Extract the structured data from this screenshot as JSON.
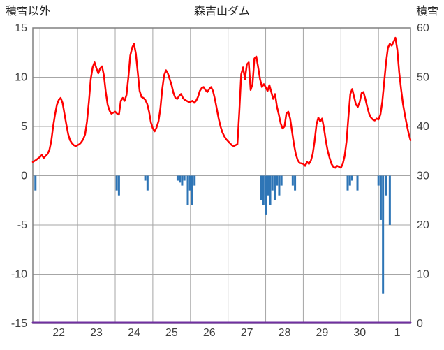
{
  "header": {
    "left_label": "積雪以外",
    "title": "森吉山ダム",
    "right_label": "積雪"
  },
  "chart_data": {
    "type": "line",
    "title": "森吉山ダム",
    "left_axis": {
      "label": "積雪以外",
      "min": -15,
      "max": 15,
      "ticks": [
        15,
        10,
        5,
        0,
        -5,
        -10,
        -15
      ]
    },
    "right_axis": {
      "label": "積雪",
      "min": 0,
      "max": 60,
      "ticks": [
        60,
        50,
        40,
        30,
        20,
        10,
        0
      ]
    },
    "x_axis": {
      "min": 21.81,
      "max": 31.85,
      "gridlines": [
        22,
        23,
        24,
        25,
        26,
        27,
        28,
        29,
        30,
        31
      ],
      "tick_labels": [
        {
          "label": "22",
          "pos": 22.5
        },
        {
          "label": "23",
          "pos": 23.5
        },
        {
          "label": "24",
          "pos": 24.5
        },
        {
          "label": "25",
          "pos": 25.5
        },
        {
          "label": "26",
          "pos": 26.5
        },
        {
          "label": "27",
          "pos": 27.5
        },
        {
          "label": "28",
          "pos": 28.5
        },
        {
          "label": "29",
          "pos": 29.5
        },
        {
          "label": "30",
          "pos": 30.5
        },
        {
          "label": "1",
          "pos": 31.5
        }
      ]
    },
    "colors": {
      "red_line": "#ff0000",
      "blue_bars": "#2e75b6",
      "purple_line": "#7030a0",
      "gridline": "#a6a6a6",
      "border": "#808080",
      "tick_text": "#404040"
    },
    "series": [
      {
        "name": "red-line",
        "type": "line",
        "axis": "left",
        "color": "#ff0000",
        "points": [
          [
            21.81,
            1.4
          ],
          [
            21.9,
            1.6
          ],
          [
            22.0,
            1.9
          ],
          [
            22.05,
            2.1
          ],
          [
            22.1,
            1.8
          ],
          [
            22.15,
            2.0
          ],
          [
            22.2,
            2.2
          ],
          [
            22.25,
            2.6
          ],
          [
            22.3,
            3.5
          ],
          [
            22.35,
            5.0
          ],
          [
            22.4,
            6.2
          ],
          [
            22.45,
            7.2
          ],
          [
            22.5,
            7.7
          ],
          [
            22.55,
            7.9
          ],
          [
            22.6,
            7.4
          ],
          [
            22.65,
            6.3
          ],
          [
            22.7,
            5.2
          ],
          [
            22.75,
            4.2
          ],
          [
            22.8,
            3.6
          ],
          [
            22.85,
            3.3
          ],
          [
            22.9,
            3.1
          ],
          [
            22.95,
            3.0
          ],
          [
            23.0,
            3.1
          ],
          [
            23.05,
            3.2
          ],
          [
            23.1,
            3.4
          ],
          [
            23.15,
            3.7
          ],
          [
            23.2,
            4.2
          ],
          [
            23.25,
            5.5
          ],
          [
            23.3,
            7.5
          ],
          [
            23.35,
            9.8
          ],
          [
            23.4,
            11.0
          ],
          [
            23.45,
            11.5
          ],
          [
            23.5,
            10.9
          ],
          [
            23.55,
            10.4
          ],
          [
            23.6,
            10.9
          ],
          [
            23.65,
            11.1
          ],
          [
            23.7,
            10.2
          ],
          [
            23.75,
            8.5
          ],
          [
            23.8,
            7.2
          ],
          [
            23.85,
            6.6
          ],
          [
            23.9,
            6.3
          ],
          [
            23.95,
            6.4
          ],
          [
            24.0,
            6.5
          ],
          [
            24.05,
            6.3
          ],
          [
            24.1,
            6.2
          ],
          [
            24.15,
            7.6
          ],
          [
            24.2,
            7.9
          ],
          [
            24.25,
            7.6
          ],
          [
            24.3,
            8.2
          ],
          [
            24.35,
            10.0
          ],
          [
            24.4,
            12.2
          ],
          [
            24.45,
            13.0
          ],
          [
            24.5,
            13.4
          ],
          [
            24.55,
            12.4
          ],
          [
            24.6,
            10.5
          ],
          [
            24.65,
            8.6
          ],
          [
            24.7,
            8.0
          ],
          [
            24.75,
            7.9
          ],
          [
            24.8,
            7.7
          ],
          [
            24.85,
            7.3
          ],
          [
            24.9,
            6.5
          ],
          [
            24.95,
            5.4
          ],
          [
            25.0,
            4.8
          ],
          [
            25.05,
            4.5
          ],
          [
            25.1,
            4.9
          ],
          [
            25.15,
            5.5
          ],
          [
            25.2,
            6.8
          ],
          [
            25.25,
            8.8
          ],
          [
            25.3,
            10.2
          ],
          [
            25.35,
            10.7
          ],
          [
            25.4,
            10.4
          ],
          [
            25.45,
            9.8
          ],
          [
            25.5,
            9.2
          ],
          [
            25.55,
            8.4
          ],
          [
            25.6,
            7.9
          ],
          [
            25.65,
            7.8
          ],
          [
            25.7,
            8.1
          ],
          [
            25.75,
            8.3
          ],
          [
            25.8,
            7.9
          ],
          [
            25.85,
            7.7
          ],
          [
            25.9,
            7.6
          ],
          [
            25.95,
            7.5
          ],
          [
            26.0,
            7.5
          ],
          [
            26.05,
            7.6
          ],
          [
            26.1,
            7.4
          ],
          [
            26.15,
            7.6
          ],
          [
            26.2,
            8.0
          ],
          [
            26.25,
            8.6
          ],
          [
            26.3,
            8.9
          ],
          [
            26.35,
            9.0
          ],
          [
            26.4,
            8.7
          ],
          [
            26.45,
            8.5
          ],
          [
            26.5,
            8.8
          ],
          [
            26.55,
            9.0
          ],
          [
            26.6,
            8.6
          ],
          [
            26.65,
            7.8
          ],
          [
            26.7,
            6.8
          ],
          [
            26.75,
            5.8
          ],
          [
            26.8,
            5.0
          ],
          [
            26.85,
            4.4
          ],
          [
            26.9,
            4.0
          ],
          [
            26.95,
            3.7
          ],
          [
            27.0,
            3.5
          ],
          [
            27.05,
            3.3
          ],
          [
            27.1,
            3.1
          ],
          [
            27.15,
            3.0
          ],
          [
            27.2,
            3.1
          ],
          [
            27.25,
            3.2
          ],
          [
            27.3,
            6.5
          ],
          [
            27.35,
            10.3
          ],
          [
            27.4,
            11.0
          ],
          [
            27.45,
            9.8
          ],
          [
            27.5,
            11.3
          ],
          [
            27.55,
            11.5
          ],
          [
            27.6,
            8.7
          ],
          [
            27.65,
            9.3
          ],
          [
            27.7,
            11.9
          ],
          [
            27.75,
            12.1
          ],
          [
            27.8,
            11.0
          ],
          [
            27.85,
            9.8
          ],
          [
            27.9,
            9.0
          ],
          [
            27.95,
            9.3
          ],
          [
            28.0,
            9.0
          ],
          [
            28.05,
            8.6
          ],
          [
            28.1,
            9.2
          ],
          [
            28.15,
            8.5
          ],
          [
            28.2,
            7.8
          ],
          [
            28.25,
            8.3
          ],
          [
            28.3,
            7.0
          ],
          [
            28.35,
            6.2
          ],
          [
            28.4,
            5.3
          ],
          [
            28.45,
            4.8
          ],
          [
            28.5,
            5.0
          ],
          [
            28.55,
            6.3
          ],
          [
            28.6,
            6.5
          ],
          [
            28.65,
            5.8
          ],
          [
            28.7,
            4.5
          ],
          [
            28.75,
            3.2
          ],
          [
            28.8,
            2.2
          ],
          [
            28.85,
            1.6
          ],
          [
            28.9,
            1.3
          ],
          [
            29.0,
            1.2
          ],
          [
            29.05,
            1.0
          ],
          [
            29.1,
            1.4
          ],
          [
            29.15,
            1.2
          ],
          [
            29.2,
            1.5
          ],
          [
            29.25,
            2.2
          ],
          [
            29.3,
            3.5
          ],
          [
            29.35,
            5.2
          ],
          [
            29.4,
            5.9
          ],
          [
            29.45,
            5.5
          ],
          [
            29.5,
            5.8
          ],
          [
            29.55,
            4.8
          ],
          [
            29.6,
            3.5
          ],
          [
            29.65,
            2.5
          ],
          [
            29.7,
            1.8
          ],
          [
            29.75,
            1.2
          ],
          [
            29.8,
            0.9
          ],
          [
            29.85,
            0.8
          ],
          [
            29.9,
            1.0
          ],
          [
            29.95,
            0.9
          ],
          [
            30.0,
            0.8
          ],
          [
            30.05,
            1.2
          ],
          [
            30.1,
            2.0
          ],
          [
            30.15,
            3.5
          ],
          [
            30.2,
            6.0
          ],
          [
            30.25,
            8.3
          ],
          [
            30.3,
            8.8
          ],
          [
            30.35,
            8.0
          ],
          [
            30.4,
            7.2
          ],
          [
            30.45,
            7.0
          ],
          [
            30.5,
            7.5
          ],
          [
            30.55,
            8.4
          ],
          [
            30.6,
            8.5
          ],
          [
            30.65,
            7.8
          ],
          [
            30.7,
            7.0
          ],
          [
            30.75,
            6.3
          ],
          [
            30.8,
            5.9
          ],
          [
            30.85,
            5.7
          ],
          [
            30.9,
            5.6
          ],
          [
            30.95,
            5.8
          ],
          [
            31.0,
            5.7
          ],
          [
            31.05,
            6.2
          ],
          [
            31.1,
            7.5
          ],
          [
            31.15,
            9.5
          ],
          [
            31.2,
            11.5
          ],
          [
            31.25,
            13.0
          ],
          [
            31.3,
            13.4
          ],
          [
            31.35,
            13.2
          ],
          [
            31.4,
            13.6
          ],
          [
            31.45,
            14.0
          ],
          [
            31.5,
            12.8
          ],
          [
            31.55,
            10.5
          ],
          [
            31.6,
            8.8
          ],
          [
            31.65,
            7.3
          ],
          [
            31.7,
            6.2
          ],
          [
            31.75,
            5.2
          ],
          [
            31.8,
            4.3
          ],
          [
            31.85,
            3.6
          ]
        ]
      },
      {
        "name": "blue-bars",
        "type": "bar",
        "axis": "left",
        "color": "#2e75b6",
        "points": [
          [
            21.88,
            -1.5
          ],
          [
            24.04,
            -1.5
          ],
          [
            24.1,
            -2.0
          ],
          [
            24.8,
            -0.5
          ],
          [
            24.86,
            -1.5
          ],
          [
            25.66,
            -0.5
          ],
          [
            25.72,
            -0.7
          ],
          [
            25.78,
            -1.0
          ],
          [
            25.84,
            -0.5
          ],
          [
            25.93,
            -3.0
          ],
          [
            25.99,
            -1.5
          ],
          [
            26.05,
            -3.0
          ],
          [
            26.11,
            -1.0
          ],
          [
            27.88,
            -2.5
          ],
          [
            27.94,
            -3.0
          ],
          [
            28.0,
            -4.0
          ],
          [
            28.06,
            -2.0
          ],
          [
            28.12,
            -3.0
          ],
          [
            28.18,
            -1.5
          ],
          [
            28.24,
            -2.5
          ],
          [
            28.3,
            -1.0
          ],
          [
            28.36,
            -2.0
          ],
          [
            28.42,
            -1.0
          ],
          [
            28.72,
            -1.0
          ],
          [
            28.78,
            -1.5
          ],
          [
            30.18,
            -1.5
          ],
          [
            30.24,
            -1.0
          ],
          [
            30.3,
            -0.5
          ],
          [
            30.44,
            -1.5
          ],
          [
            31.0,
            -1.0
          ],
          [
            31.06,
            -4.5
          ],
          [
            31.12,
            -12.0
          ],
          [
            31.2,
            -2.0
          ],
          [
            31.3,
            -5.0
          ]
        ]
      },
      {
        "name": "purple-line",
        "type": "line",
        "axis": "right",
        "color": "#7030a0",
        "points": [
          [
            21.81,
            0
          ],
          [
            31.85,
            0
          ]
        ]
      }
    ]
  }
}
